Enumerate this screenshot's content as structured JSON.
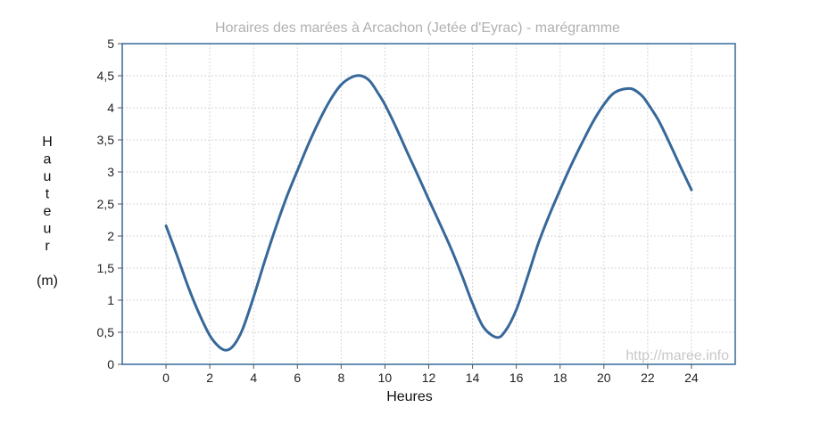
{
  "chart_data": {
    "type": "line",
    "title": "Horaires des marées à Arcachon (Jetée d'Eyrac) - marégramme",
    "xlabel": "Heures",
    "ylabel_letters": [
      "H",
      "a",
      "u",
      "t",
      "e",
      "u",
      "r"
    ],
    "ylabel_unit": "(m)",
    "watermark": "http://maree.info",
    "xlim": [
      -2,
      26
    ],
    "ylim": [
      0,
      5
    ],
    "x_ticks": [
      0,
      2,
      4,
      6,
      8,
      10,
      12,
      14,
      16,
      18,
      20,
      22,
      24
    ],
    "x_tick_labels": [
      "0",
      "2",
      "4",
      "6",
      "8",
      "10",
      "12",
      "14",
      "16",
      "18",
      "20",
      "22",
      "24"
    ],
    "y_ticks": [
      0,
      0.5,
      1,
      1.5,
      2,
      2.5,
      3,
      3.5,
      4,
      4.5,
      5
    ],
    "y_tick_labels": [
      "0",
      "0,5",
      "1",
      "1,5",
      "2",
      "2,5",
      "3",
      "3,5",
      "4",
      "4,5",
      "5"
    ],
    "grid": true,
    "line_color": "#36689a",
    "axes_color": "#36689a",
    "series": [
      {
        "x": [
          0,
          0.5,
          1,
          1.5,
          2,
          2.4,
          2.75,
          3.1,
          3.5,
          4,
          4.5,
          5,
          5.5,
          6,
          6.5,
          7,
          7.5,
          8,
          8.5,
          8.9,
          9.3,
          9.7,
          10,
          10.5,
          11,
          11.5,
          12,
          12.5,
          13,
          13.5,
          14,
          14.5,
          15.1,
          15.5,
          16,
          16.5,
          17,
          17.5,
          18,
          18.5,
          19,
          19.5,
          20,
          20.5,
          21.2,
          21.7,
          22,
          22.5,
          23,
          23.5,
          24
        ],
        "y": [
          2.16,
          1.7,
          1.22,
          0.8,
          0.45,
          0.28,
          0.22,
          0.3,
          0.55,
          1.05,
          1.6,
          2.12,
          2.6,
          3.02,
          3.43,
          3.8,
          4.12,
          4.36,
          4.48,
          4.5,
          4.42,
          4.22,
          4.05,
          3.7,
          3.32,
          2.95,
          2.57,
          2.2,
          1.82,
          1.4,
          0.95,
          0.58,
          0.42,
          0.52,
          0.85,
          1.35,
          1.88,
          2.32,
          2.72,
          3.1,
          3.45,
          3.78,
          4.05,
          4.24,
          4.3,
          4.2,
          4.07,
          3.8,
          3.45,
          3.08,
          2.72
        ]
      }
    ]
  }
}
